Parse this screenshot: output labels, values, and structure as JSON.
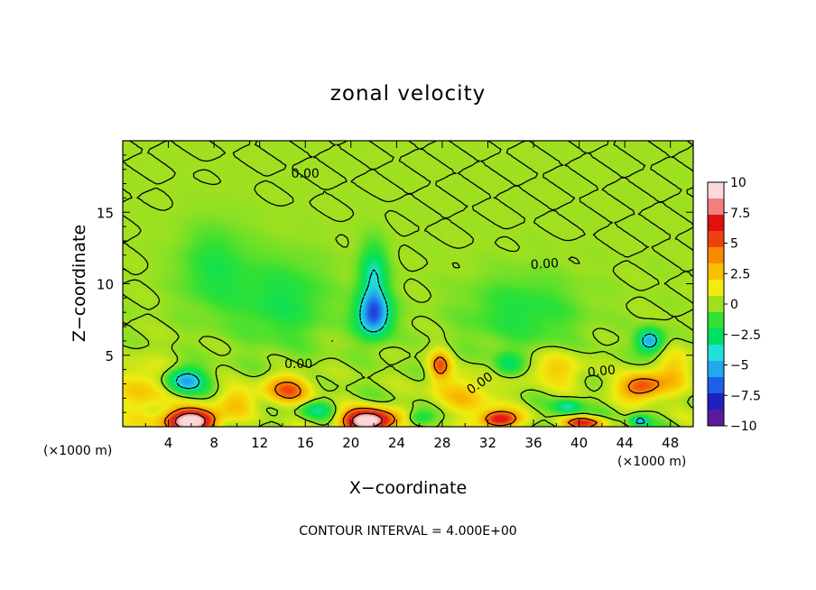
{
  "chart_data": {
    "type": "heatmap",
    "title": "zonal velocity",
    "xlabel": "X−coordinate",
    "ylabel": "Z−coordinate",
    "x_unit": "(×1000 m)",
    "x_unit_secondary": "(×1000 m)",
    "footer": "CONTOUR INTERVAL = 4.000E+00",
    "xlim": [
      0,
      50
    ],
    "ylim": [
      0,
      20
    ],
    "x_ticks": [
      4,
      8,
      12,
      16,
      20,
      24,
      28,
      32,
      36,
      40,
      44,
      48
    ],
    "y_ticks": [
      5,
      10,
      15
    ],
    "colorbar": {
      "min": -10,
      "max": 10,
      "ticks": [
        "10",
        "7.5",
        "5",
        "2.5",
        "0",
        "−2.5",
        "−5",
        "−7.5",
        "−10"
      ],
      "colors": [
        "#5a1a9a",
        "#2020c0",
        "#1e5ee8",
        "#22a8ee",
        "#22e0d8",
        "#00e060",
        "#33e033",
        "#a0e020",
        "#f0ec10",
        "#f8c000",
        "#f88a00",
        "#f04010",
        "#e01010",
        "#f08080",
        "#fcd8d8"
      ]
    },
    "contour_labels": [
      {
        "text": "0.00",
        "x": 16.0,
        "y": 17.4,
        "angle": 0
      },
      {
        "text": "0.00",
        "x": 37.0,
        "y": 11.1,
        "angle": -4
      },
      {
        "text": "0.00",
        "x": 15.4,
        "y": 4.1,
        "angle": 0
      },
      {
        "text": "0.00",
        "x": 31.5,
        "y": 2.8,
        "angle": -35
      },
      {
        "text": "0.00",
        "x": 42.0,
        "y": 3.6,
        "angle": -6
      }
    ],
    "features": [
      {
        "x": 5.5,
        "z": 3.2,
        "sx": 1.7,
        "sz": 0.9,
        "v": -6
      },
      {
        "x": 6.0,
        "z": 0.4,
        "sx": 2.2,
        "sz": 0.8,
        "v": 12
      },
      {
        "x": 21.5,
        "z": 0.4,
        "sx": 2.2,
        "sz": 0.8,
        "v": 12
      },
      {
        "x": 22.0,
        "z": 7.8,
        "sx": 1.5,
        "sz": 1.5,
        "v": -7
      },
      {
        "x": 22.0,
        "z": 10.5,
        "sx": 1.2,
        "sz": 2.2,
        "v": -4
      },
      {
        "x": 14.5,
        "z": 2.6,
        "sx": 2.0,
        "sz": 1.0,
        "v": 5
      },
      {
        "x": 27.8,
        "z": 4.3,
        "sx": 0.9,
        "sz": 1.0,
        "v": 5
      },
      {
        "x": 33.0,
        "z": 0.5,
        "sx": 1.6,
        "sz": 0.6,
        "v": 8
      },
      {
        "x": 40.5,
        "z": 0.3,
        "sx": 1.8,
        "sz": 0.4,
        "v": 6
      },
      {
        "x": 45.5,
        "z": 2.8,
        "sx": 2.0,
        "sz": 0.9,
        "v": 6
      },
      {
        "x": 46.2,
        "z": 6.0,
        "sx": 1.1,
        "sz": 0.8,
        "v": -6
      },
      {
        "x": 33.8,
        "z": 4.3,
        "sx": 1.2,
        "sz": 0.8,
        "v": -3
      },
      {
        "x": 39.0,
        "z": 1.4,
        "sx": 1.2,
        "sz": 0.5,
        "v": -4
      },
      {
        "x": 45.3,
        "z": 0.4,
        "sx": 0.8,
        "sz": 0.4,
        "v": -5
      },
      {
        "x": 14.0,
        "z": 8.8,
        "sx": 4.0,
        "sz": 3.0,
        "v": -2.2
      },
      {
        "x": 8.0,
        "z": 11.0,
        "sx": 3.0,
        "sz": 3.0,
        "v": -2
      },
      {
        "x": 35.0,
        "z": 8.0,
        "sx": 5.0,
        "sz": 2.5,
        "v": -2
      },
      {
        "x": 2.0,
        "z": 2.5,
        "sx": 2.5,
        "sz": 2.0,
        "v": 2.5
      },
      {
        "x": 10.0,
        "z": 1.8,
        "sx": 2.0,
        "sz": 1.0,
        "v": 2.5
      },
      {
        "x": 30.0,
        "z": 2.2,
        "sx": 3.0,
        "sz": 1.5,
        "v": 2.5
      },
      {
        "x": 38.0,
        "z": 4.0,
        "sx": 2.5,
        "sz": 1.2,
        "v": 2.5
      },
      {
        "x": 48.5,
        "z": 4.0,
        "sx": 1.5,
        "sz": 1.5,
        "v": 2.5
      },
      {
        "x": 17.0,
        "z": 1.2,
        "sx": 1.5,
        "sz": 0.6,
        "v": -3
      },
      {
        "x": 26.0,
        "z": 0.6,
        "sx": 1.2,
        "sz": 0.5,
        "v": -3
      }
    ]
  }
}
